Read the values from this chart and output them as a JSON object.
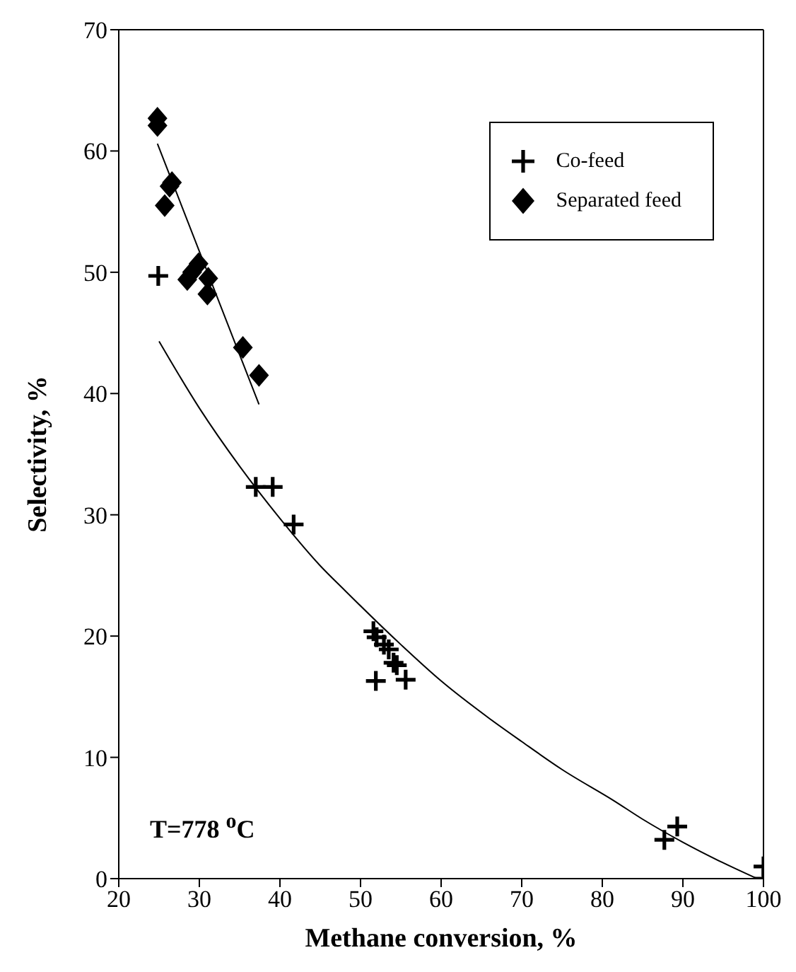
{
  "chart_data": {
    "type": "scatter",
    "xlabel": "Methane conversion, %",
    "ylabel": "Selectivity, %",
    "xlim": [
      20,
      100
    ],
    "ylim": [
      0,
      70
    ],
    "xticks": [
      20,
      30,
      40,
      50,
      60,
      70,
      80,
      90,
      100
    ],
    "yticks": [
      0,
      10,
      20,
      30,
      40,
      50,
      60,
      70
    ],
    "legend": "top right",
    "annotations": [
      "T=778 $^{o}$C"
    ],
    "series": [
      {
        "name": "Co-feed",
        "marker": "cross",
        "color": "#000000",
        "x": [
          24.9,
          37.0,
          39.1,
          41.7,
          51.6,
          52.0,
          52.9,
          53.5,
          54.1,
          54.5,
          51.9,
          55.6,
          87.7,
          89.3,
          100,
          100
        ],
        "values": [
          49.7,
          32.3,
          32.3,
          29.2,
          20.4,
          19.9,
          19.3,
          18.9,
          17.8,
          17.6,
          16.3,
          16.4,
          3.2,
          4.3,
          1,
          0
        ]
      },
      {
        "name": "Separated feed",
        "marker": "diamond",
        "color": "#000000",
        "x": [
          24.8,
          24.8,
          26.6,
          26.3,
          25.7,
          29.9,
          29.1,
          28.5,
          31.1,
          31.0,
          35.4,
          37.4
        ],
        "values": [
          62.7,
          62.1,
          57.4,
          57.1,
          55.5,
          50.7,
          50.0,
          49.4,
          49.5,
          48.2,
          43.8,
          41.5
        ]
      },
      {
        "type": "line",
        "marker": "none",
        "color": "#000000",
        "x": [
          24.8,
          37.4
        ],
        "values": [
          60.6,
          39.1
        ]
      },
      {
        "type": "line",
        "marker": "none",
        "color": "#000000",
        "x": [
          25,
          30,
          35,
          40,
          45,
          48,
          55,
          60,
          66,
          70,
          75,
          81.5,
          85,
          90,
          95,
          99.2
        ],
        "values": [
          44.3,
          38.8,
          34.0,
          29.7,
          25.8,
          23.8,
          19.3,
          16.3,
          13.2,
          11.3,
          9.0,
          6.4,
          4.9,
          3.0,
          1.3,
          0
        ]
      }
    ]
  }
}
